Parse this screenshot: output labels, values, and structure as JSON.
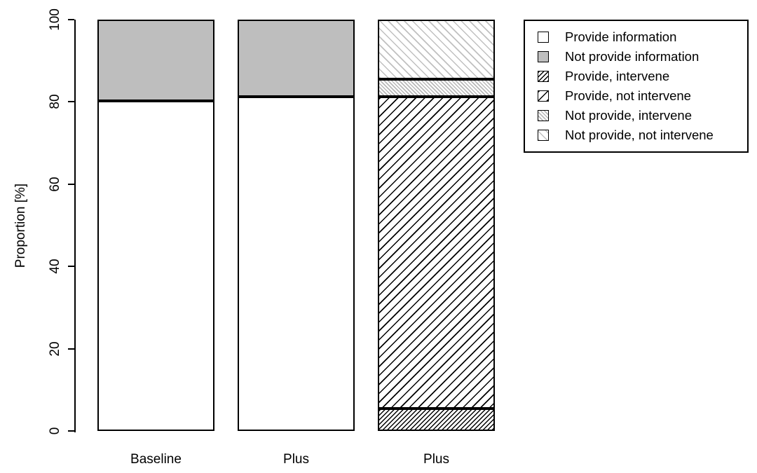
{
  "chart_data": {
    "type": "bar",
    "stacked": true,
    "title": "",
    "xlabel": "",
    "ylabel": "Proportion [%]",
    "ylim": [
      0,
      100
    ],
    "yticks": [
      0,
      20,
      40,
      60,
      80,
      100
    ],
    "grid": false,
    "legend_position": "top-right",
    "categories": [
      "Baseline",
      "Plus",
      "Plus"
    ],
    "series": [
      {
        "name": "Provide information",
        "pattern": "solid-white",
        "values": [
          80.3,
          81.2,
          0
        ]
      },
      {
        "name": "Not provide information",
        "pattern": "solid-gray",
        "values": [
          19.7,
          18.8,
          0
        ]
      },
      {
        "name": "Provide, intervene",
        "pattern": "hatch-dense-fwd-black",
        "values": [
          0,
          0,
          5.4
        ]
      },
      {
        "name": "Provide, not intervene",
        "pattern": "hatch-sparse-fwd-black",
        "values": [
          0,
          0,
          75.8
        ]
      },
      {
        "name": "Not provide, intervene",
        "pattern": "hatch-dense-back-gray",
        "values": [
          0,
          0,
          4.4
        ]
      },
      {
        "name": "Not provide, not intervene",
        "pattern": "hatch-sparse-back-gray",
        "values": [
          0,
          0,
          14.4
        ]
      }
    ],
    "colors": {
      "bar_fill_white": "#ffffff",
      "bar_fill_gray": "#bebebe",
      "hatch_black": "#000000",
      "hatch_gray": "#b9b9b9",
      "border": "#000000",
      "background": "#ffffff"
    }
  }
}
